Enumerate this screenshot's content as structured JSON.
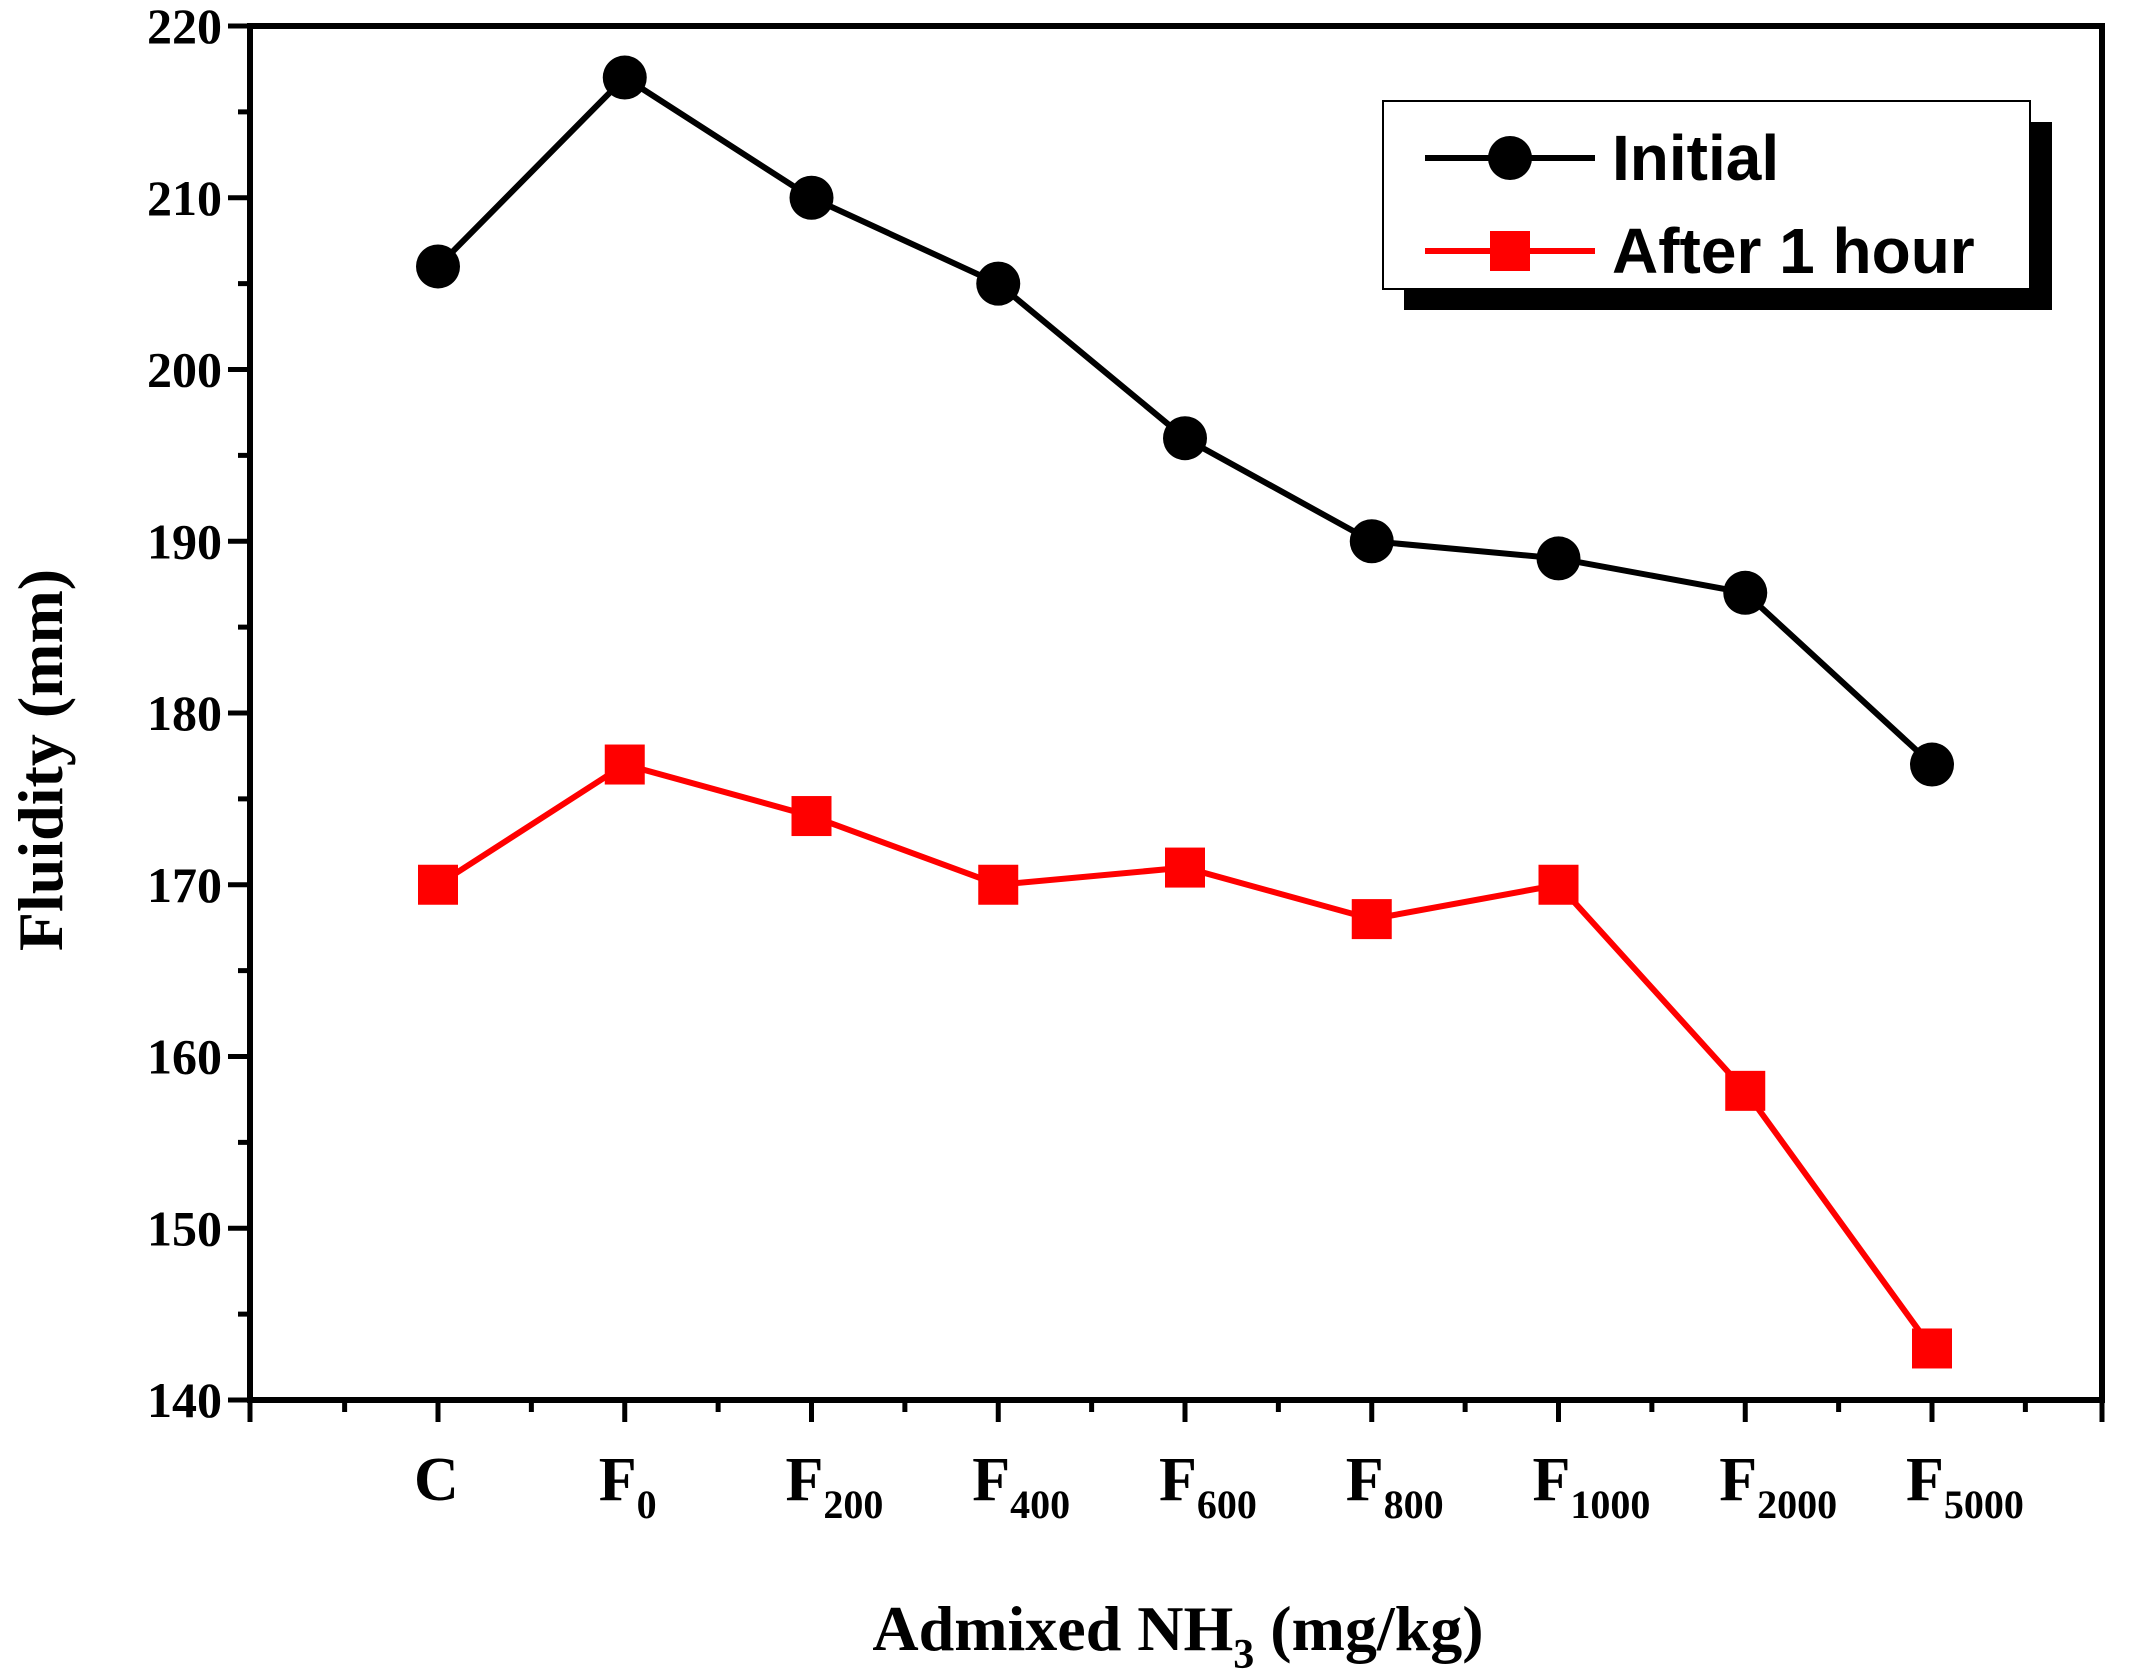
{
  "chart_data": {
    "type": "line",
    "title": "",
    "xlabel": "Admixed NH3 (mg/kg)",
    "xlabel_main": "Admixed NH",
    "xlabel_sub": "3",
    "xlabel_tail": " (mg/kg)",
    "ylabel": "Fluidity (mm)",
    "ylim": [
      140,
      220
    ],
    "yticks": [
      140,
      150,
      160,
      170,
      180,
      190,
      200,
      210,
      220
    ],
    "categories": [
      {
        "main": "C",
        "sub": ""
      },
      {
        "main": "F",
        "sub": "0"
      },
      {
        "main": "F",
        "sub": "200"
      },
      {
        "main": "F",
        "sub": "400"
      },
      {
        "main": "F",
        "sub": "600"
      },
      {
        "main": "F",
        "sub": "800"
      },
      {
        "main": "F",
        "sub": "1000"
      },
      {
        "main": "F",
        "sub": "2000"
      },
      {
        "main": "F",
        "sub": "5000"
      }
    ],
    "series": [
      {
        "name": "Initial",
        "color": "#000000",
        "marker": "circle",
        "values": [
          206,
          217,
          210,
          205,
          196,
          190,
          189,
          187,
          177
        ]
      },
      {
        "name": "After 1 hour",
        "color": "#ff0000",
        "marker": "square",
        "values": [
          170,
          177,
          174,
          170,
          171,
          168,
          170,
          158,
          143
        ]
      }
    ],
    "legend": "top-right",
    "grid": false
  }
}
